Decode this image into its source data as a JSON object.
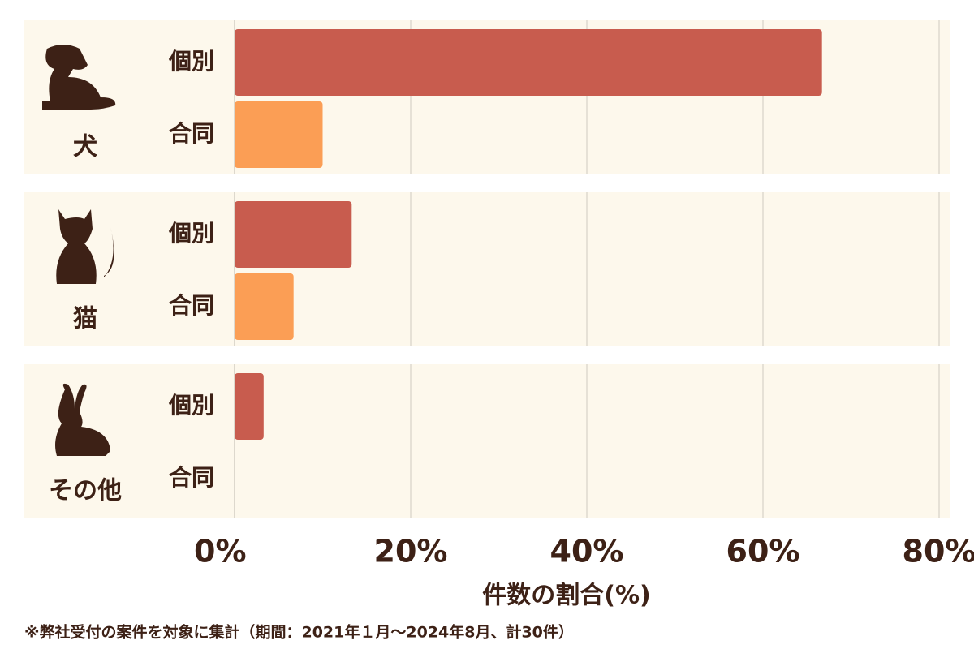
{
  "chart_data": {
    "type": "hbar",
    "categories": [
      "犬",
      "猫",
      "その他"
    ],
    "series": [
      {
        "name": "個別",
        "color": "#c85c4e",
        "values": [
          66.7,
          13.3,
          3.3
        ]
      },
      {
        "name": "合同",
        "color": "#fb9e55",
        "values": [
          10,
          6.7,
          0
        ]
      }
    ],
    "xlim": [
      0,
      80
    ],
    "xticks": [
      {
        "value": 0,
        "label": "0%"
      },
      {
        "value": 20,
        "label": "20%"
      },
      {
        "value": 40,
        "label": "40%"
      },
      {
        "value": 60,
        "label": "60%"
      },
      {
        "value": 80,
        "label": "80%"
      }
    ],
    "xlabel": "件数の割合(%)",
    "note": "※弊社受付の案件を対象に集計（期間：2021年１月～2024年8月、計30件）",
    "grid": true
  }
}
